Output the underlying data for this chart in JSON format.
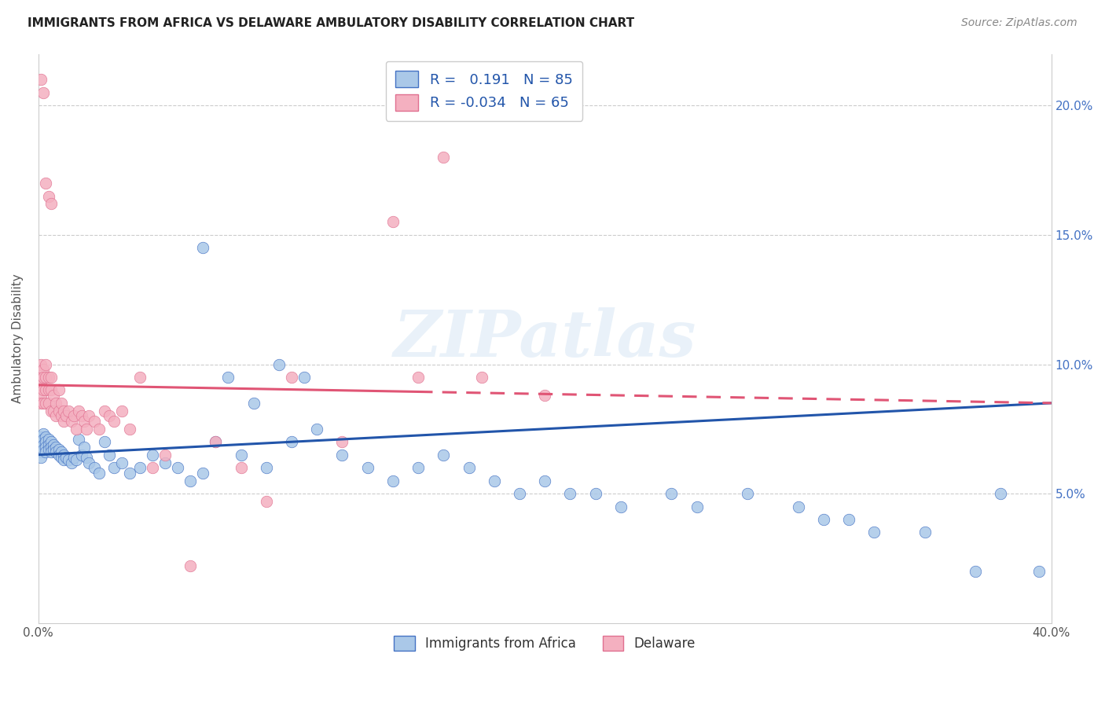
{
  "title": "IMMIGRANTS FROM AFRICA VS DELAWARE AMBULATORY DISABILITY CORRELATION CHART",
  "source": "Source: ZipAtlas.com",
  "ylabel": "Ambulatory Disability",
  "xlim": [
    0.0,
    0.4
  ],
  "ylim": [
    0.0,
    0.22
  ],
  "blue_color": "#aac8e8",
  "blue_edge_color": "#4472c4",
  "pink_color": "#f4b0c0",
  "pink_edge_color": "#e07090",
  "blue_line_color": "#2255aa",
  "pink_line_color": "#e05575",
  "R_blue": 0.191,
  "N_blue": 85,
  "R_pink": -0.034,
  "N_pink": 65,
  "legend_label_blue": "Immigrants from Africa",
  "legend_label_pink": "Delaware",
  "watermark": "ZIPatlas",
  "background_color": "#ffffff",
  "grid_color": "#cccccc",
  "title_color": "#222222",
  "source_color": "#888888",
  "right_tick_color": "#4472c4",
  "blue_line_start_y": 0.065,
  "blue_line_end_y": 0.085,
  "pink_line_start_y": 0.092,
  "pink_line_end_y": 0.085,
  "pink_line_solid_end_x": 0.15,
  "blue_x": [
    0.001,
    0.001,
    0.001,
    0.001,
    0.001,
    0.002,
    0.002,
    0.002,
    0.002,
    0.003,
    0.003,
    0.003,
    0.003,
    0.004,
    0.004,
    0.004,
    0.005,
    0.005,
    0.005,
    0.006,
    0.006,
    0.007,
    0.007,
    0.008,
    0.008,
    0.009,
    0.009,
    0.01,
    0.01,
    0.011,
    0.012,
    0.013,
    0.014,
    0.015,
    0.016,
    0.017,
    0.018,
    0.019,
    0.02,
    0.022,
    0.024,
    0.026,
    0.028,
    0.03,
    0.033,
    0.036,
    0.04,
    0.045,
    0.05,
    0.055,
    0.06,
    0.065,
    0.07,
    0.08,
    0.09,
    0.1,
    0.11,
    0.12,
    0.13,
    0.14,
    0.15,
    0.16,
    0.17,
    0.18,
    0.19,
    0.2,
    0.21,
    0.22,
    0.23,
    0.25,
    0.26,
    0.28,
    0.3,
    0.31,
    0.32,
    0.33,
    0.35,
    0.37,
    0.38,
    0.395,
    0.065,
    0.075,
    0.085,
    0.095,
    0.105
  ],
  "blue_y": [
    0.072,
    0.07,
    0.068,
    0.066,
    0.064,
    0.073,
    0.071,
    0.069,
    0.067,
    0.072,
    0.07,
    0.068,
    0.066,
    0.071,
    0.069,
    0.067,
    0.07,
    0.068,
    0.066,
    0.069,
    0.067,
    0.068,
    0.066,
    0.067,
    0.065,
    0.066,
    0.064,
    0.065,
    0.063,
    0.064,
    0.063,
    0.062,
    0.064,
    0.063,
    0.071,
    0.065,
    0.068,
    0.064,
    0.062,
    0.06,
    0.058,
    0.07,
    0.065,
    0.06,
    0.062,
    0.058,
    0.06,
    0.065,
    0.062,
    0.06,
    0.055,
    0.058,
    0.07,
    0.065,
    0.06,
    0.07,
    0.075,
    0.065,
    0.06,
    0.055,
    0.06,
    0.065,
    0.06,
    0.055,
    0.05,
    0.055,
    0.05,
    0.05,
    0.045,
    0.05,
    0.045,
    0.05,
    0.045,
    0.04,
    0.04,
    0.035,
    0.035,
    0.02,
    0.05,
    0.02,
    0.145,
    0.095,
    0.085,
    0.1,
    0.095
  ],
  "pink_x": [
    0.001,
    0.001,
    0.001,
    0.001,
    0.001,
    0.002,
    0.002,
    0.002,
    0.002,
    0.003,
    0.003,
    0.003,
    0.003,
    0.004,
    0.004,
    0.004,
    0.005,
    0.005,
    0.005,
    0.006,
    0.006,
    0.007,
    0.007,
    0.008,
    0.008,
    0.009,
    0.009,
    0.01,
    0.01,
    0.011,
    0.012,
    0.013,
    0.014,
    0.015,
    0.016,
    0.017,
    0.018,
    0.019,
    0.02,
    0.022,
    0.024,
    0.026,
    0.028,
    0.03,
    0.033,
    0.036,
    0.04,
    0.045,
    0.05,
    0.06,
    0.07,
    0.08,
    0.09,
    0.1,
    0.12,
    0.14,
    0.15,
    0.16,
    0.175,
    0.2,
    0.001,
    0.002,
    0.003,
    0.004,
    0.005
  ],
  "pink_y": [
    0.095,
    0.092,
    0.088,
    0.1,
    0.085,
    0.098,
    0.095,
    0.09,
    0.085,
    0.1,
    0.095,
    0.09,
    0.085,
    0.095,
    0.09,
    0.085,
    0.09,
    0.095,
    0.082,
    0.088,
    0.082,
    0.085,
    0.08,
    0.09,
    0.082,
    0.085,
    0.08,
    0.082,
    0.078,
    0.08,
    0.082,
    0.078,
    0.08,
    0.075,
    0.082,
    0.08,
    0.078,
    0.075,
    0.08,
    0.078,
    0.075,
    0.082,
    0.08,
    0.078,
    0.082,
    0.075,
    0.095,
    0.06,
    0.065,
    0.022,
    0.07,
    0.06,
    0.047,
    0.095,
    0.07,
    0.155,
    0.095,
    0.18,
    0.095,
    0.088,
    0.21,
    0.205,
    0.17,
    0.165,
    0.162
  ]
}
